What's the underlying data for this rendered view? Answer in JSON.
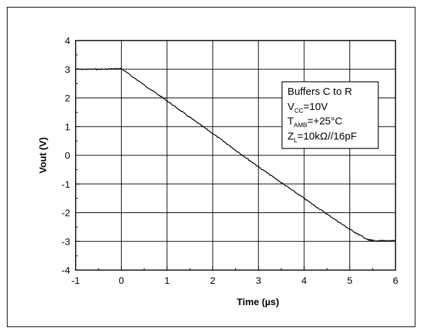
{
  "chart_data": {
    "type": "line",
    "title": "",
    "xlabel": "Time (µs)",
    "ylabel": "Vout (V)",
    "xlim": [
      -1,
      6
    ],
    "ylim": [
      -4,
      4
    ],
    "x_ticks": [
      "-1",
      "0",
      "1",
      "2",
      "3",
      "4",
      "5",
      "6"
    ],
    "y_ticks": [
      "4",
      "3",
      "2",
      "1",
      "0",
      "-1",
      "-2",
      "-3",
      "-4"
    ],
    "grid": true,
    "legend_position": "top-right",
    "annotation": {
      "line1": "Buffers C to R",
      "line2_main": "V",
      "line2_sub": "CC",
      "line2_rest": "=10V",
      "line3_main": "T",
      "line3_sub": "AMB",
      "line3_rest": "=+25°C",
      "line4_main": "Z",
      "line4_sub": "L",
      "line4_rest": "=10kΩ//16pF"
    },
    "series": [
      {
        "x": [
          -1,
          -0.5,
          0,
          0.5,
          1,
          1.5,
          2,
          2.5,
          3,
          3.5,
          4,
          4.5,
          5,
          5.4,
          5.5,
          6
        ],
        "y": [
          3.0,
          3.0,
          3.02,
          2.45,
          1.9,
          1.32,
          0.76,
          0.18,
          -0.4,
          -0.95,
          -1.5,
          -2.05,
          -2.58,
          -2.95,
          -2.97,
          -2.98
        ]
      }
    ]
  }
}
